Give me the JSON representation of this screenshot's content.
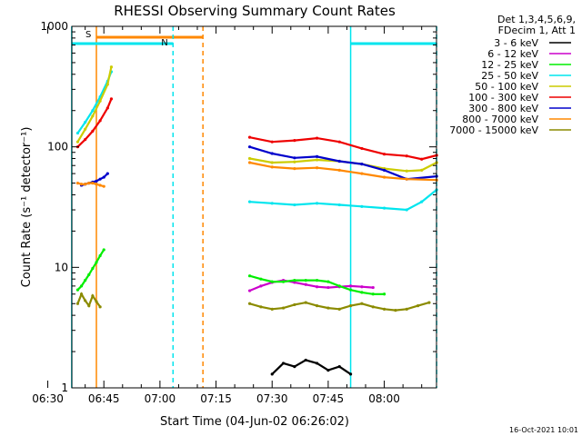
{
  "chart_data": {
    "type": "line",
    "title": "RHESSI Observing Summary Count Rates",
    "xlabel": "Start Time (04-Jun-02 06:26:02)",
    "ylabel": "Count Rate (s⁻¹ detector⁻¹)",
    "yscale": "log",
    "ylim": [
      1,
      1000
    ],
    "xlim_minutes": [
      6.4333,
      103.9667
    ],
    "x_tick_minutes": [
      0,
      15,
      30,
      45,
      60,
      75,
      90
    ],
    "x_tick_labels": [
      "06:30",
      "06:45",
      "07:00",
      "07:15",
      "07:30",
      "07:45",
      "08:00"
    ],
    "y_ticks": [
      1,
      10,
      100,
      1000
    ],
    "y_tick_labels": [
      "1",
      "10",
      "100",
      "1000"
    ],
    "legend_header": [
      "Det 1,3,4,5,6,9,",
      "FDecim 1, Att 1"
    ],
    "legend_position": "top-right outside",
    "timestamp": "16-Oct-2021 10:01",
    "series": [
      {
        "name": "3 - 6 keV",
        "color": "#000000",
        "x": [
          60,
          63,
          66,
          69,
          72,
          75,
          78,
          81
        ],
        "y": [
          1.3,
          1.6,
          1.5,
          1.7,
          1.6,
          1.4,
          1.5,
          1.3
        ]
      },
      {
        "name": "6 - 12 keV",
        "color": "#cc00cc",
        "x": [
          54,
          57,
          60,
          63,
          66,
          69,
          72,
          75,
          78,
          81,
          84,
          87
        ],
        "y": [
          6.4,
          7.0,
          7.5,
          7.8,
          7.5,
          7.2,
          6.9,
          6.8,
          6.9,
          7.0,
          6.9,
          6.8
        ]
      },
      {
        "name": "12 - 25 keV",
        "color": "#00ee00",
        "x": [
          8,
          9,
          10,
          11,
          12,
          13,
          14,
          15,
          54,
          57,
          60,
          63,
          66,
          69,
          72,
          75,
          78,
          81,
          84,
          87,
          90
        ],
        "y": [
          6.5,
          7.0,
          7.8,
          8.7,
          9.8,
          11,
          12.5,
          14,
          8.5,
          8.0,
          7.6,
          7.6,
          7.8,
          7.8,
          7.8,
          7.6,
          7.0,
          6.5,
          6.2,
          6.0,
          6.0
        ]
      },
      {
        "name": "25 - 50 keV",
        "color": "#00e5ee",
        "x": [
          8,
          10,
          12,
          14,
          16,
          17,
          54,
          60,
          66,
          72,
          78,
          84,
          90,
          96,
          100,
          104
        ],
        "y": [
          130,
          160,
          200,
          260,
          350,
          420,
          35,
          34,
          33,
          34,
          33,
          32,
          31,
          30,
          35,
          44
        ]
      },
      {
        "name": "50 - 100 keV",
        "color": "#cccc00",
        "x": [
          8,
          10,
          12,
          14,
          16,
          17,
          54,
          60,
          66,
          72,
          78,
          84,
          90,
          96,
          100,
          104
        ],
        "y": [
          110,
          140,
          180,
          240,
          330,
          460,
          80,
          74,
          75,
          78,
          76,
          72,
          66,
          63,
          64,
          74
        ]
      },
      {
        "name": "100 - 300 keV",
        "color": "#ee0000",
        "x": [
          8,
          10,
          12,
          14,
          16,
          17,
          54,
          60,
          66,
          72,
          78,
          84,
          90,
          96,
          100,
          104
        ],
        "y": [
          100,
          115,
          135,
          165,
          210,
          250,
          120,
          110,
          113,
          118,
          110,
          97,
          87,
          84,
          79,
          85
        ]
      },
      {
        "name": "300 - 800 keV",
        "color": "#0000cc",
        "x": [
          9,
          10,
          11,
          12,
          13,
          14,
          15,
          16,
          54,
          60,
          66,
          72,
          78,
          84,
          90,
          96,
          104
        ],
        "y": [
          48,
          49,
          50,
          51,
          52,
          54,
          56,
          60,
          100,
          88,
          81,
          83,
          76,
          72,
          64,
          54,
          57
        ]
      },
      {
        "name": "800 - 7000 keV",
        "color": "#ff8800",
        "x": [
          8,
          9,
          10,
          11,
          12,
          13,
          14,
          15,
          54,
          60,
          66,
          72,
          78,
          84,
          90,
          96,
          104
        ],
        "y": [
          50,
          49,
          49,
          50,
          50,
          49,
          48,
          47,
          74,
          68,
          66,
          67,
          64,
          60,
          56,
          54,
          53
        ]
      },
      {
        "name": "7000 - 15000 keV",
        "color": "#8b8b00",
        "x": [
          8,
          9,
          10,
          11,
          12,
          13,
          14,
          54,
          57,
          60,
          63,
          66,
          69,
          72,
          75,
          78,
          81,
          84,
          87,
          90,
          93,
          96,
          99,
          102
        ],
        "y": [
          5.0,
          6.0,
          5.3,
          4.8,
          5.8,
          5.2,
          4.7,
          5.0,
          4.7,
          4.5,
          4.6,
          4.9,
          5.1,
          4.8,
          4.6,
          4.5,
          4.8,
          5.0,
          4.7,
          4.5,
          4.4,
          4.5,
          4.8,
          5.1
        ]
      }
    ],
    "annotations": [
      {
        "label": "S",
        "type": "SAA interval",
        "color": "#ff8800",
        "start_minutes": 13.0,
        "end_minutes": 41.5
      },
      {
        "label": "N",
        "type": "Night interval",
        "color": "#00e5ee",
        "start_minutes": 6.4,
        "end_minutes": 33.5
      },
      {
        "label": "",
        "type": "Night interval",
        "color": "#00e5ee",
        "start_minutes": 81.0,
        "end_minutes": 104.0
      }
    ]
  }
}
